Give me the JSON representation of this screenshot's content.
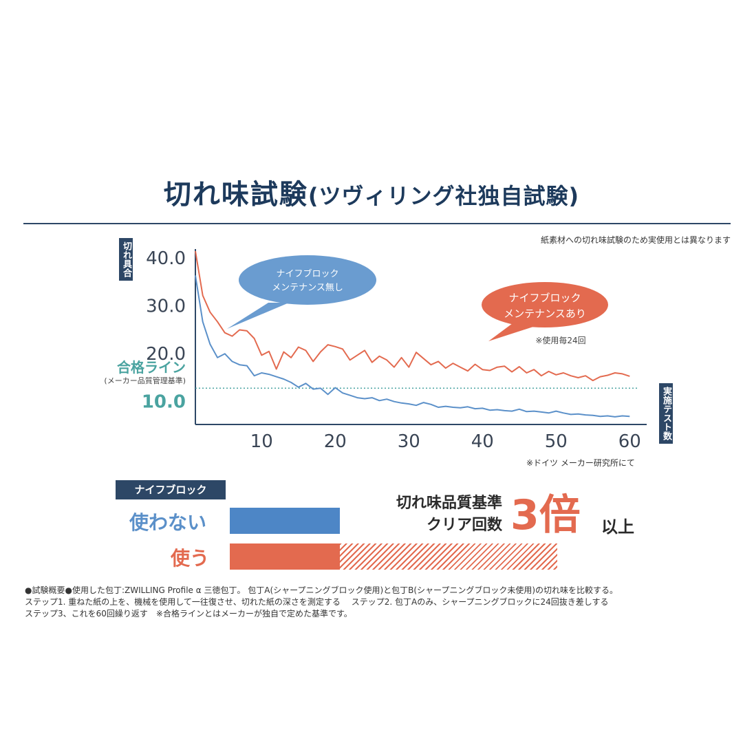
{
  "title": {
    "main": "切れ味試験",
    "sub": "(ツヴィリング社独自試験)"
  },
  "note_top": "紙素材への切れ味試験のため実使用とは異なります",
  "note_bottom": "※ドイツ メーカー研究所にて",
  "colors": {
    "navy": "#2d4766",
    "blue_series": "#5b90c9",
    "red_series": "#e36a4f",
    "pass_line": "#4aa3a0"
  },
  "chart_data": {
    "type": "line",
    "ylabel": "切れ具合",
    "xlabel": "実施テスト数",
    "xlim": [
      1,
      61
    ],
    "ylim": [
      5,
      40
    ],
    "y_ticks": [
      "40.0",
      "30.0",
      "20.0",
      "10.0"
    ],
    "y_tick_values": [
      40,
      30,
      20,
      10
    ],
    "x_ticks": [
      "10",
      "20",
      "30",
      "40",
      "50",
      "60"
    ],
    "x_tick_values": [
      10,
      20,
      30,
      40,
      50,
      60
    ],
    "pass_line": {
      "label": "合格ライン",
      "sublabel": "(メーカー品質管理基準)",
      "value": 12.6
    },
    "series": [
      {
        "name": "ナイフブロック メンテナンス無し",
        "color": "#5b90c9",
        "x": [
          1,
          2,
          3,
          4,
          5,
          6,
          7,
          8,
          9,
          10,
          11,
          12,
          13,
          14,
          15,
          16,
          17,
          18,
          19,
          20,
          21,
          22,
          23,
          24,
          25,
          26,
          27,
          28,
          29,
          30,
          31,
          32,
          33,
          34,
          35,
          36,
          37,
          38,
          39,
          40,
          41,
          42,
          43,
          44,
          45,
          46,
          47,
          48,
          49,
          50,
          51,
          52,
          53,
          54,
          55,
          56,
          57,
          58,
          59,
          60
        ],
        "values": [
          36.2,
          26.5,
          21.8,
          19.0,
          19.8,
          18.2,
          17.5,
          17.3,
          15.2,
          15.8,
          15.5,
          15.0,
          14.5,
          13.8,
          12.8,
          13.6,
          12.4,
          12.6,
          11.3,
          12.7,
          11.6,
          11.1,
          10.6,
          10.4,
          10.6,
          10.0,
          10.3,
          9.8,
          9.5,
          9.3,
          9.0,
          9.6,
          9.2,
          8.6,
          8.8,
          8.6,
          8.5,
          8.7,
          8.3,
          8.4,
          8.0,
          8.1,
          7.9,
          7.8,
          8.2,
          7.7,
          7.8,
          7.6,
          7.4,
          7.8,
          7.4,
          7.1,
          7.2,
          7.0,
          6.9,
          6.7,
          6.8,
          6.6,
          6.8,
          6.7
        ]
      },
      {
        "name": "ナイフブロック メンテナンスあり",
        "note": "※使用毎24回",
        "color": "#e36a4f",
        "x": [
          1,
          2,
          3,
          4,
          5,
          6,
          7,
          8,
          9,
          10,
          11,
          12,
          13,
          14,
          15,
          16,
          17,
          18,
          19,
          20,
          21,
          22,
          23,
          24,
          25,
          26,
          27,
          28,
          29,
          30,
          31,
          32,
          33,
          34,
          35,
          36,
          37,
          38,
          39,
          40,
          41,
          42,
          43,
          44,
          45,
          46,
          47,
          48,
          49,
          50,
          51,
          52,
          53,
          54,
          55,
          56,
          57,
          58,
          59,
          60
        ],
        "values": [
          41.3,
          32.0,
          28.5,
          26.5,
          24.2,
          23.5,
          24.8,
          24.6,
          23.0,
          19.5,
          20.3,
          16.6,
          20.2,
          19.0,
          21.2,
          20.5,
          18.2,
          20.2,
          21.7,
          21.3,
          20.8,
          18.5,
          19.5,
          20.5,
          18.0,
          19.3,
          18.5,
          17.0,
          19.0,
          17.0,
          20.1,
          18.8,
          17.5,
          18.2,
          16.8,
          17.8,
          17.0,
          16.2,
          17.6,
          16.5,
          16.3,
          17.0,
          17.2,
          16.0,
          17.1,
          15.8,
          16.5,
          15.2,
          16.1,
          15.4,
          15.8,
          15.2,
          14.8,
          15.2,
          14.2,
          15.0,
          15.3,
          15.8,
          15.6,
          15.1
        ]
      }
    ]
  },
  "callouts": {
    "blue": [
      "ナイフブロック",
      "メンテナンス無し"
    ],
    "red": [
      "ナイフブロック",
      "メンテナンスあり"
    ],
    "red_note": "※使用毎24回"
  },
  "comparison": {
    "header": "ナイフブロック",
    "rows": [
      {
        "label": "使わない",
        "multiple": 1
      },
      {
        "label": "使う",
        "multiple": 3
      }
    ],
    "criteria_line1": "切れ味品質基準",
    "criteria_line2": "クリア回数",
    "times_number": "3",
    "times_unit": "倍",
    "times_suffix": "以上"
  },
  "footer": [
    "●試験概要●使用した包丁:ZWILLING Profile α 三徳包丁。 包丁A(シャープニングブロック使用)と包丁B(シャープニングブロック未使用)の切れ味を比較する。",
    "ステップ1. 重ねた紙の上を、機械を使用して一往復させ、切れた紙の深さを測定する　 ステップ2. 包丁Aのみ、シャープニングブロックに24回抜き差しする",
    "ステップ3、これを60回繰り返す　※合格ラインとはメーカーが独自で定めた基準です。"
  ]
}
